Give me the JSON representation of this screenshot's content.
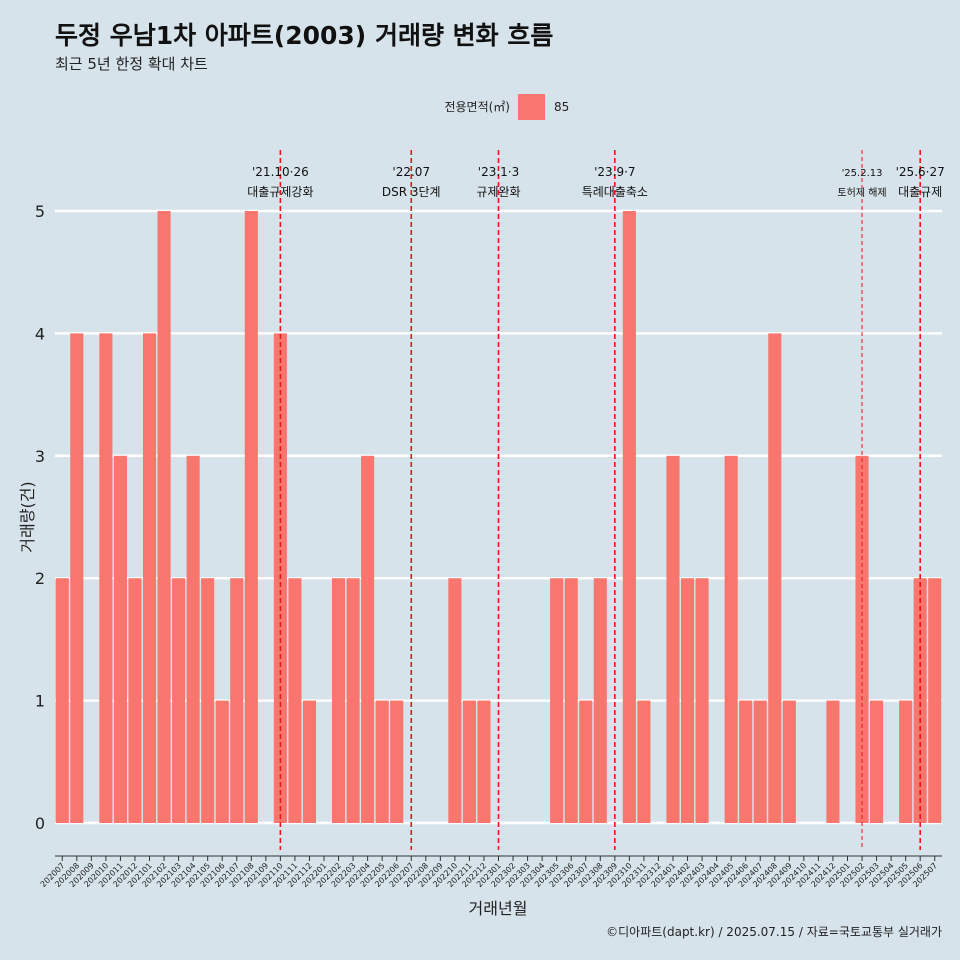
{
  "colors": {
    "background": "#d6e3ea",
    "bar": "#f8766d",
    "grid": "#ffffff",
    "event_line": "#e8161a"
  },
  "chart_data": {
    "type": "bar",
    "title": "두정 우남1차 아파트(2003) 거래량 변화 흐름",
    "subtitle": "최근 5년 한정 확대 차트",
    "xlabel": "거래년월",
    "ylabel": "거래량(건)",
    "ylim": [
      0,
      5
    ],
    "yticks": [
      0,
      1,
      2,
      3,
      4,
      5
    ],
    "grid": true,
    "legend": {
      "title": "전용면적(㎡)",
      "position": "top",
      "entries": [
        "85"
      ]
    },
    "categories": [
      "202007",
      "202008",
      "202009",
      "202010",
      "202011",
      "202012",
      "202101",
      "202102",
      "202103",
      "202104",
      "202105",
      "202106",
      "202107",
      "202108",
      "202109",
      "202110",
      "202111",
      "202112",
      "202201",
      "202202",
      "202203",
      "202204",
      "202205",
      "202206",
      "202207",
      "202208",
      "202209",
      "202210",
      "202211",
      "202212",
      "202301",
      "202302",
      "202303",
      "202304",
      "202305",
      "202306",
      "202307",
      "202308",
      "202309",
      "202310",
      "202311",
      "202312",
      "202401",
      "202402",
      "202403",
      "202404",
      "202405",
      "202406",
      "202407",
      "202408",
      "202409",
      "202410",
      "202411",
      "202412",
      "202501",
      "202502",
      "202503",
      "202504",
      "202505",
      "202506",
      "202507"
    ],
    "series": [
      {
        "name": "85",
        "values": [
          2,
          4,
          0,
          4,
          3,
          2,
          4,
          5,
          2,
          3,
          2,
          1,
          2,
          5,
          0,
          4,
          2,
          1,
          0,
          2,
          2,
          3,
          1,
          1,
          0,
          0,
          0,
          2,
          1,
          1,
          0,
          0,
          0,
          0,
          2,
          2,
          1,
          2,
          0,
          5,
          1,
          0,
          3,
          2,
          2,
          0,
          3,
          1,
          1,
          4,
          1,
          0,
          0,
          1,
          0,
          3,
          1,
          0,
          1,
          2,
          2
        ]
      }
    ],
    "events": [
      {
        "x": "202110",
        "date": "'21.10·26",
        "label": "대출규제강화",
        "style": "dashed"
      },
      {
        "x": "202207",
        "date": "'22.07",
        "label": "DSR 3단계",
        "style": "dashed"
      },
      {
        "x": "202301",
        "date": "'23.1·3",
        "label": "규제완화",
        "style": "dashed"
      },
      {
        "x": "202309",
        "date": "'23.9·7",
        "label": "특례대출축소",
        "style": "dashed"
      },
      {
        "x": "202502",
        "date": "'25.2.13",
        "label": "토허제 해제",
        "style": "thin-dashed"
      },
      {
        "x": "202506",
        "date": "'25.6·27",
        "label": "대출규제",
        "style": "dashed"
      }
    ],
    "caption": "©디아파트(dapt.kr) / 2025.07.15 / 자료=국토교통부 실거래가"
  }
}
